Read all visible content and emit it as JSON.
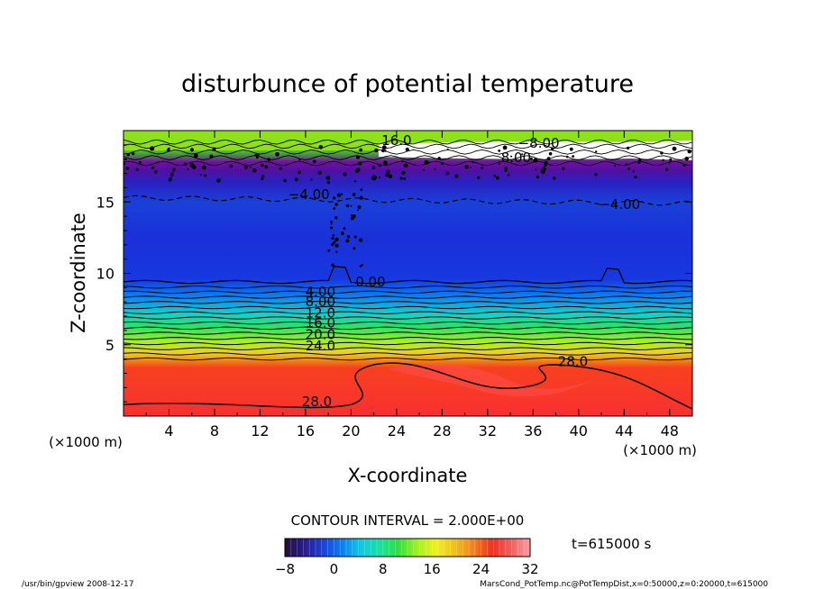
{
  "chart_data": {
    "type": "heatmap",
    "title": "disturbunce of potential temperature",
    "xlabel": "X-coordinate",
    "ylabel": "Z-coordinate",
    "x_unit_label_left": "(×1000 m)",
    "x_unit_label_right": "(×1000 m)",
    "xlim": [
      0,
      50
    ],
    "ylim": [
      0,
      20
    ],
    "x_ticks": [
      "4",
      "8",
      "12",
      "16",
      "20",
      "24",
      "28",
      "32",
      "36",
      "40",
      "44",
      "48"
    ],
    "y_ticks": [
      "5",
      "10",
      "15"
    ],
    "contour_interval": "CONTOUR INTERVAL = 2.000E+00",
    "time_label": "t=615000 s",
    "colorbar": {
      "min": -8,
      "max": 32,
      "tick_labels": [
        "−8",
        "0",
        "8",
        "16",
        "24",
        "32"
      ],
      "colors": [
        "#20103a",
        "#2a1a8c",
        "#1a3fd8",
        "#0a7ff0",
        "#10c8e0",
        "#18e0a0",
        "#30e040",
        "#a0f020",
        "#f0f020",
        "#f0c020",
        "#f08020",
        "#f03020",
        "#f06060",
        "#f8a0a0"
      ]
    },
    "contour_labels": [
      {
        "text": "−8.00",
        "x": 36.5,
        "z": 18.8
      },
      {
        "text": "8.00",
        "x": 34.5,
        "z": 17.8
      },
      {
        "text": "16.0",
        "x": 24.0,
        "z": 19.0
      },
      {
        "text": "−4.00",
        "x": 16.3,
        "z": 15.2
      },
      {
        "text": "−4.00",
        "x": 43.6,
        "z": 14.5
      },
      {
        "text": "0.00",
        "x": 21.7,
        "z": 9.1
      },
      {
        "text": "4.00",
        "x": 17.3,
        "z": 8.4
      },
      {
        "text": "8.00",
        "x": 17.3,
        "z": 7.7
      },
      {
        "text": "12.0",
        "x": 17.3,
        "z": 6.9
      },
      {
        "text": "16.0",
        "x": 17.3,
        "z": 6.2
      },
      {
        "text": "20.0",
        "x": 17.3,
        "z": 5.4
      },
      {
        "text": "24.0",
        "x": 17.3,
        "z": 4.6
      },
      {
        "text": "28.0",
        "x": 39.5,
        "z": 3.5
      },
      {
        "text": "28.0",
        "x": 17.0,
        "z": 0.7
      }
    ]
  },
  "footer": {
    "left": "/usr/bin/gpview   2008-12-17",
    "right": "MarsCond_PotTemp.nc@PotTempDist,x=0:50000,z=0:20000,t=615000"
  }
}
